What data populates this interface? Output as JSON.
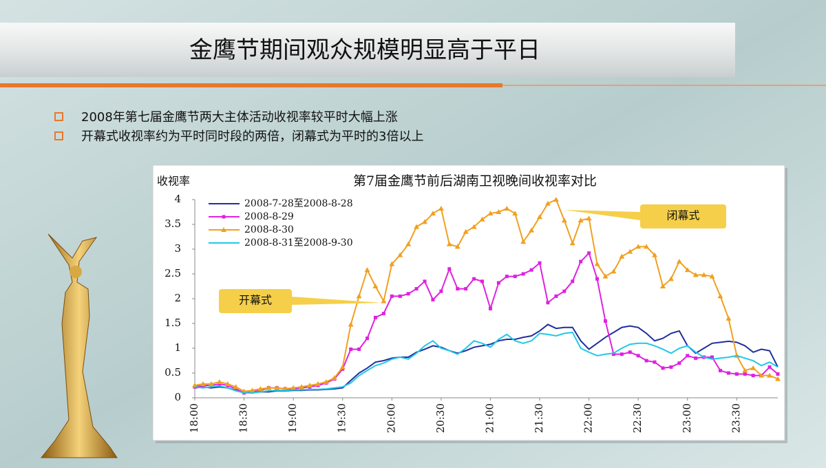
{
  "slide": {
    "title": "金鹰节期间观众规模明显高于平日",
    "bullets": [
      "2008年第七届金鹰节两大主体活动收视率较平时大幅上涨",
      "开幕式收视率约为平时同时段的两倍，闭幕式为平时的3倍以上"
    ]
  },
  "chart_data": {
    "type": "line",
    "title": "第7届金鹰节前后湖南卫视晚间收视率对比",
    "y_label": "收视率",
    "categories": [
      "18:00",
      null,
      null,
      null,
      null,
      null,
      "18:30",
      null,
      null,
      null,
      null,
      null,
      "19:00",
      null,
      null,
      null,
      null,
      null,
      "19:30",
      null,
      null,
      null,
      null,
      null,
      "20:00",
      null,
      null,
      null,
      null,
      null,
      "20:30",
      null,
      null,
      null,
      null,
      null,
      "21:00",
      null,
      null,
      null,
      null,
      null,
      "21:30",
      null,
      null,
      null,
      null,
      null,
      "22:00",
      null,
      null,
      null,
      null,
      null,
      "22:30",
      null,
      null,
      null,
      null,
      null,
      "23:00",
      null,
      null,
      null,
      null,
      null,
      "23:30",
      null,
      null,
      null,
      null,
      null
    ],
    "series": [
      {
        "name": "2008-7-28至2008-8-28",
        "color": "#1f2e9c",
        "marker": "none",
        "values": [
          0.2,
          0.22,
          0.2,
          0.22,
          0.2,
          0.15,
          0.1,
          0.1,
          0.12,
          0.12,
          0.14,
          0.14,
          0.15,
          0.15,
          0.16,
          0.16,
          0.17,
          0.18,
          0.2,
          0.35,
          0.5,
          0.6,
          0.72,
          0.75,
          0.8,
          0.82,
          0.82,
          0.92,
          0.98,
          1.05,
          1.02,
          0.95,
          0.9,
          0.95,
          1.02,
          1.05,
          1.08,
          1.15,
          1.18,
          1.18,
          1.22,
          1.25,
          1.35,
          1.48,
          1.4,
          1.42,
          1.42,
          1.15,
          0.98,
          1.1,
          1.22,
          1.32,
          1.42,
          1.45,
          1.42,
          1.3,
          1.15,
          1.2,
          1.3,
          1.35,
          1.05,
          0.9,
          1.0,
          1.1,
          1.12,
          1.14,
          1.12,
          1.05,
          0.92,
          0.98,
          0.95,
          0.62
        ]
      },
      {
        "name": "2008-8-29",
        "color": "#e020e0",
        "marker": "square",
        "values": [
          0.22,
          0.25,
          0.25,
          0.28,
          0.25,
          0.18,
          0.1,
          0.12,
          0.15,
          0.2,
          0.2,
          0.18,
          0.18,
          0.2,
          0.22,
          0.25,
          0.3,
          0.38,
          0.58,
          0.98,
          0.98,
          1.2,
          1.62,
          1.7,
          2.05,
          2.05,
          2.1,
          2.2,
          2.35,
          1.98,
          2.15,
          2.6,
          2.2,
          2.2,
          2.4,
          2.35,
          1.8,
          2.32,
          2.45,
          2.45,
          2.5,
          2.58,
          2.72,
          1.92,
          2.05,
          2.15,
          2.35,
          2.75,
          2.92,
          2.4,
          1.55,
          0.88,
          0.88,
          0.92,
          0.85,
          0.75,
          0.72,
          0.6,
          0.62,
          0.7,
          0.85,
          0.8,
          0.82,
          0.82,
          0.55,
          0.5,
          0.48,
          0.48,
          0.45,
          0.45,
          0.62,
          0.48
        ]
      },
      {
        "name": "2008-8-30",
        "color": "#f0a020",
        "marker": "triangle",
        "values": [
          0.25,
          0.28,
          0.28,
          0.32,
          0.28,
          0.22,
          0.13,
          0.15,
          0.18,
          0.2,
          0.2,
          0.18,
          0.2,
          0.22,
          0.25,
          0.28,
          0.32,
          0.4,
          0.62,
          1.48,
          2.05,
          2.58,
          2.25,
          1.95,
          2.7,
          2.88,
          3.1,
          3.45,
          3.55,
          3.72,
          3.82,
          3.1,
          3.05,
          3.35,
          3.45,
          3.6,
          3.72,
          3.75,
          3.82,
          3.72,
          3.15,
          3.38,
          3.65,
          3.92,
          4.0,
          3.58,
          3.12,
          3.58,
          3.62,
          2.7,
          2.45,
          2.55,
          2.85,
          2.95,
          3.05,
          3.05,
          2.88,
          2.25,
          2.4,
          2.75,
          2.58,
          2.48,
          2.48,
          2.45,
          2.05,
          1.6,
          0.85,
          0.55,
          0.6,
          0.45,
          0.45,
          0.38
        ]
      },
      {
        "name": "2008-8-31至2008-9-30",
        "color": "#20c8e8",
        "marker": "none",
        "values": [
          0.22,
          0.2,
          0.22,
          0.24,
          0.2,
          0.14,
          0.1,
          0.1,
          0.12,
          0.14,
          0.15,
          0.15,
          0.16,
          0.16,
          0.17,
          0.17,
          0.18,
          0.2,
          0.22,
          0.3,
          0.45,
          0.55,
          0.65,
          0.7,
          0.78,
          0.82,
          0.78,
          0.9,
          1.05,
          1.15,
          1.0,
          0.95,
          0.88,
          1.0,
          1.15,
          1.1,
          1.02,
          1.18,
          1.28,
          1.15,
          1.1,
          1.15,
          1.3,
          1.28,
          1.25,
          1.3,
          1.32,
          1.0,
          0.92,
          0.85,
          0.88,
          0.9,
          1.0,
          1.08,
          1.1,
          1.1,
          1.05,
          0.98,
          0.9,
          1.0,
          1.05,
          0.92,
          0.82,
          0.78,
          0.8,
          0.82,
          0.85,
          0.8,
          0.75,
          0.65,
          0.72,
          0.62
        ]
      }
    ],
    "ylim": [
      0,
      4
    ],
    "yticks": [
      0,
      0.5,
      1,
      1.5,
      2,
      2.5,
      3,
      3.5,
      4
    ],
    "legend": "upper left",
    "annotations": [
      {
        "text": "开幕式"
      },
      {
        "text": "闭幕式"
      }
    ]
  }
}
